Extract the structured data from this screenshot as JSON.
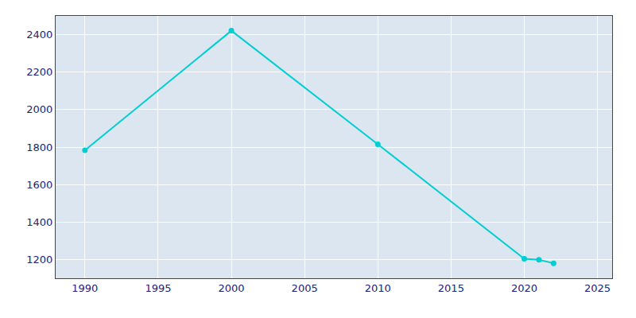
{
  "chart_data": {
    "type": "line",
    "x": [
      1990,
      2000,
      2010,
      2020,
      2021,
      2022
    ],
    "values": [
      1783,
      2421,
      1815,
      1204,
      1199,
      1180
    ],
    "color": "#00CED1",
    "marker": "circle",
    "xlim": [
      1988,
      2026
    ],
    "ylim": [
      1100,
      2500
    ],
    "xticks": [
      1990,
      1995,
      2000,
      2005,
      2010,
      2015,
      2020,
      2025
    ],
    "yticks": [
      1200,
      1400,
      1600,
      1800,
      2000,
      2200,
      2400
    ],
    "grid": true
  }
}
